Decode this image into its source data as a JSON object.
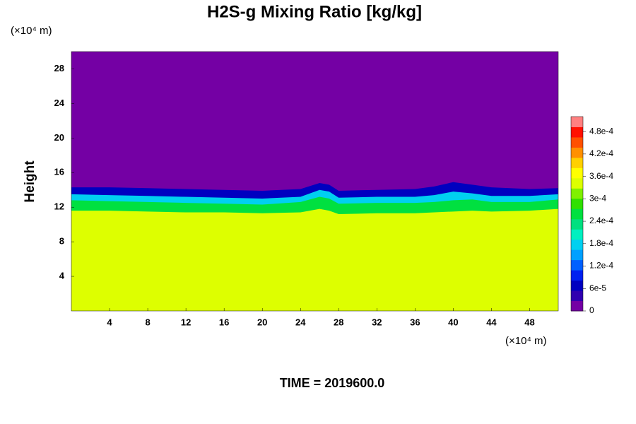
{
  "chart_data": {
    "type": "contour",
    "title": "H2S-g Mixing Ratio [kg/kg]",
    "y_label": "Height",
    "y_unit": "(×10⁴ m)",
    "x_unit": "(×10⁴ m)",
    "footer": "TIME = 2019600.0",
    "xlim": [
      0,
      51
    ],
    "ylim": [
      0,
      30
    ],
    "xticks": [
      4,
      8,
      12,
      16,
      20,
      24,
      28,
      32,
      36,
      40,
      44,
      48
    ],
    "yticks": [
      4,
      8,
      12,
      16,
      20,
      24,
      28
    ],
    "clim": [
      0,
      0.00052
    ],
    "cticks": [
      0,
      {
        "value": 6e-05,
        "label": "6e-5"
      },
      {
        "value": 0.00012,
        "label": "1.2e-4"
      },
      {
        "value": 0.00018,
        "label": "1.8e-4"
      },
      {
        "value": 0.00024,
        "label": "2.4e-4"
      },
      {
        "value": 0.0003,
        "label": "3e-4"
      },
      {
        "value": 0.00036,
        "label": "3.6e-4"
      },
      {
        "value": 0.00042,
        "label": "4.2e-4"
      },
      {
        "value": 0.00048,
        "label": "4.8e-4"
      }
    ],
    "colormap": [
      "#7400a4",
      "#3000b0",
      "#0000c0",
      "#0020f0",
      "#0060ff",
      "#00a0ff",
      "#00d0f0",
      "#00f0c0",
      "#00e080",
      "#00e040",
      "#30e000",
      "#80f000",
      "#ddff00",
      "#ffff00",
      "#ffd000",
      "#ff9000",
      "#ff5000",
      "#ff1000",
      "#ff8080"
    ],
    "background_value": 0,
    "x": [
      0,
      4,
      8,
      12,
      16,
      20,
      24,
      26,
      27,
      28,
      32,
      36,
      38,
      40,
      42,
      44,
      48,
      51
    ],
    "layers": [
      {
        "value": 8e-05,
        "heights": [
          14.3,
          14.3,
          14.2,
          14.1,
          14,
          13.9,
          14.1,
          14.8,
          14.6,
          13.9,
          14,
          14.1,
          14.4,
          14.9,
          14.6,
          14.3,
          14.1,
          14.2
        ]
      },
      {
        "value": 0.00017,
        "heights": [
          13.5,
          13.4,
          13.3,
          13.2,
          13.1,
          13,
          13.2,
          14,
          13.8,
          13.1,
          13.2,
          13.2,
          13.4,
          13.8,
          13.6,
          13.3,
          13.3,
          13.5
        ]
      },
      {
        "value": 0.00025,
        "heights": [
          12.8,
          12.7,
          12.6,
          12.5,
          12.4,
          12.3,
          12.6,
          13.2,
          13,
          12.4,
          12.5,
          12.5,
          12.6,
          12.8,
          12.9,
          12.6,
          12.6,
          12.9
        ]
      },
      {
        "value": 0.00033,
        "heights": [
          11.6,
          11.6,
          11.5,
          11.4,
          11.4,
          11.3,
          11.4,
          11.8,
          11.6,
          11.2,
          11.3,
          11.3,
          11.4,
          11.5,
          11.6,
          11.5,
          11.6,
          11.8
        ]
      }
    ]
  }
}
